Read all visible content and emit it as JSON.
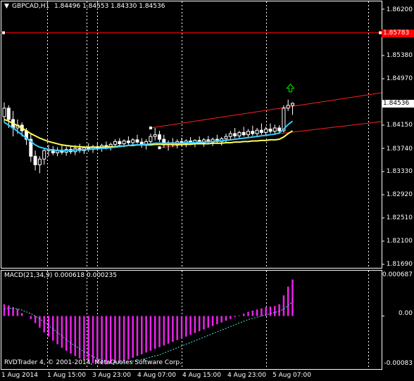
{
  "header": {
    "symbol": "GBPCAD,H1",
    "ohlc": "1.84496 1.84553 1.84330 1.84536"
  },
  "price_axis": {
    "labels": [
      "1.86200",
      "1.85783",
      "1.85380",
      "1.84970",
      "1.84536",
      "1.84150",
      "1.83740",
      "1.83330",
      "1.82920",
      "1.82510",
      "1.82100",
      "1.81690"
    ],
    "current_price": "1.84536",
    "alert_price": "1.85783"
  },
  "macd": {
    "title": "MACD(21,34,9) 0.000618 0.000235",
    "scale_labels": [
      "0.000687",
      "0.00",
      "-0.00083"
    ]
  },
  "footer": {
    "copyright": "RVDTrader 4, © 2001-2014, MetaQuotes Software Corp."
  },
  "time_axis": {
    "labels": [
      "1 Aug 2014",
      "1 Aug 15:00",
      "3 Aug 23:00",
      "4 Aug 07:00",
      "4 Aug 15:00",
      "4 Aug 23:00",
      "5 Aug 07:00"
    ]
  },
  "colors": {
    "background": "#000000",
    "bull_candle": "#000000",
    "candle_outline": "#ffffff",
    "ma_fast": "#33ccff",
    "ma_slow": "#ffff55",
    "channel": "#ff2020",
    "alert_line": "#ff0000",
    "macd_hist": "#ee22ee",
    "macd_signal": "#55dddd",
    "up_arrow": "#00cc00"
  },
  "chart_data": [
    {
      "type": "candlestick",
      "symbol": "GBPCAD",
      "timeframe": "H1",
      "ylim": [
        1.8169,
        1.862
      ],
      "x_labels": [
        "1 Aug 2014",
        "1 Aug 15:00",
        "3 Aug 23:00",
        "4 Aug 07:00",
        "4 Aug 15:00",
        "4 Aug 23:00",
        "5 Aug 07:00"
      ],
      "last_close": 1.84536,
      "horizontal_line": 1.85783,
      "ohlc": [
        [
          1.843,
          1.8455,
          1.842,
          1.8445
        ],
        [
          1.8445,
          1.845,
          1.841,
          1.8425
        ],
        [
          1.8425,
          1.844,
          1.8395,
          1.841
        ],
        [
          1.841,
          1.8425,
          1.84,
          1.8415
        ],
        [
          1.8415,
          1.842,
          1.8395,
          1.8405
        ],
        [
          1.8405,
          1.841,
          1.838,
          1.839
        ],
        [
          1.839,
          1.84,
          1.835,
          1.836
        ],
        [
          1.836,
          1.837,
          1.8335,
          1.8345
        ],
        [
          1.8345,
          1.836,
          1.833,
          1.8355
        ],
        [
          1.8355,
          1.8375,
          1.8345,
          1.837
        ],
        [
          1.837,
          1.838,
          1.836,
          1.8372
        ],
        [
          1.8372,
          1.8378,
          1.8362,
          1.8366
        ],
        [
          1.8366,
          1.8376,
          1.836,
          1.8371
        ],
        [
          1.8371,
          1.8379,
          1.8363,
          1.8367
        ],
        [
          1.8367,
          1.8377,
          1.8361,
          1.8372
        ],
        [
          1.8372,
          1.8378,
          1.8364,
          1.8368
        ],
        [
          1.8368,
          1.838,
          1.8362,
          1.8374
        ],
        [
          1.8374,
          1.8382,
          1.8366,
          1.837
        ],
        [
          1.837,
          1.8378,
          1.8364,
          1.8375
        ],
        [
          1.8375,
          1.8383,
          1.8368,
          1.8372
        ],
        [
          1.8372,
          1.838,
          1.8366,
          1.8377
        ],
        [
          1.8377,
          1.8384,
          1.837,
          1.8374
        ],
        [
          1.8374,
          1.8382,
          1.8368,
          1.8379
        ],
        [
          1.8379,
          1.8386,
          1.8372,
          1.8376
        ],
        [
          1.8376,
          1.8384,
          1.837,
          1.8381
        ],
        [
          1.8381,
          1.839,
          1.8375,
          1.8386
        ],
        [
          1.8386,
          1.8392,
          1.8378,
          1.8382
        ],
        [
          1.8382,
          1.839,
          1.8376,
          1.8387
        ],
        [
          1.8387,
          1.8395,
          1.838,
          1.8384
        ],
        [
          1.8384,
          1.8392,
          1.8378,
          1.8389
        ],
        [
          1.8389,
          1.8398,
          1.8382,
          1.8385
        ],
        [
          1.8385,
          1.8392,
          1.8375,
          1.838
        ],
        [
          1.838,
          1.839,
          1.8372,
          1.8386
        ],
        [
          1.8386,
          1.84,
          1.838,
          1.8395
        ],
        [
          1.8395,
          1.841,
          1.8388,
          1.8398
        ],
        [
          1.8398,
          1.8405,
          1.8385,
          1.839
        ],
        [
          1.839,
          1.8398,
          1.8375,
          1.838
        ],
        [
          1.838,
          1.8388,
          1.837,
          1.8384
        ],
        [
          1.8384,
          1.8392,
          1.8376,
          1.838
        ],
        [
          1.838,
          1.839,
          1.8374,
          1.8386
        ],
        [
          1.8386,
          1.8393,
          1.8378,
          1.8382
        ],
        [
          1.8382,
          1.839,
          1.8376,
          1.8387
        ],
        [
          1.8387,
          1.8394,
          1.838,
          1.8383
        ],
        [
          1.8383,
          1.839,
          1.8376,
          1.8388
        ],
        [
          1.8388,
          1.8395,
          1.8381,
          1.8384
        ],
        [
          1.8384,
          1.8392,
          1.8377,
          1.8389
        ],
        [
          1.8389,
          1.8396,
          1.8382,
          1.8385
        ],
        [
          1.8385,
          1.8393,
          1.8378,
          1.839
        ],
        [
          1.839,
          1.8398,
          1.8383,
          1.8386
        ],
        [
          1.8386,
          1.8394,
          1.8379,
          1.8391
        ],
        [
          1.8391,
          1.84,
          1.8384,
          1.8395
        ],
        [
          1.8395,
          1.8405,
          1.8388,
          1.84
        ],
        [
          1.84,
          1.841,
          1.8392,
          1.8396
        ],
        [
          1.8396,
          1.8405,
          1.839,
          1.8402
        ],
        [
          1.8402,
          1.8412,
          1.8395,
          1.8398
        ],
        [
          1.8398,
          1.8408,
          1.8392,
          1.8404
        ],
        [
          1.8404,
          1.8414,
          1.8396,
          1.84
        ],
        [
          1.84,
          1.841,
          1.8394,
          1.8406
        ],
        [
          1.8406,
          1.8418,
          1.8398,
          1.8402
        ],
        [
          1.8402,
          1.8412,
          1.8396,
          1.8408
        ],
        [
          1.8408,
          1.8418,
          1.84,
          1.8404
        ],
        [
          1.8404,
          1.8416,
          1.8398,
          1.841
        ],
        [
          1.841,
          1.8415,
          1.84,
          1.8405
        ],
        [
          1.8405,
          1.845,
          1.8402,
          1.8445
        ],
        [
          1.8445,
          1.846,
          1.844,
          1.845
        ],
        [
          1.845,
          1.8455,
          1.8433,
          1.84536
        ]
      ],
      "ma_fast": [
        1.842,
        1.8415,
        1.841,
        1.8404,
        1.8398,
        1.8392,
        1.8386,
        1.838,
        1.8376,
        1.8374,
        1.8372,
        1.8371,
        1.837,
        1.837,
        1.837,
        1.837,
        1.8371,
        1.8371,
        1.8372,
        1.8372,
        1.8373,
        1.8373,
        1.8374,
        1.8374,
        1.8375,
        1.8376,
        1.8377,
        1.8378,
        1.8379,
        1.838,
        1.838,
        1.838,
        1.8381,
        1.8382,
        1.8383,
        1.8383,
        1.8383,
        1.8383,
        1.8383,
        1.8383,
        1.8383,
        1.8384,
        1.8384,
        1.8384,
        1.8385,
        1.8385,
        1.8386,
        1.8386,
        1.8387,
        1.8387,
        1.8388,
        1.8389,
        1.839,
        1.8391,
        1.8392,
        1.8393,
        1.8394,
        1.8395,
        1.8396,
        1.8397,
        1.8398,
        1.8399,
        1.8401,
        1.8408,
        1.8416,
        1.8422
      ],
      "ma_slow": [
        1.8425,
        1.8422,
        1.8418,
        1.8414,
        1.841,
        1.8405,
        1.84,
        1.8396,
        1.8392,
        1.8389,
        1.8386,
        1.8384,
        1.8382,
        1.838,
        1.8379,
        1.8378,
        1.8377,
        1.8377,
        1.8376,
        1.8376,
        1.8376,
        1.8376,
        1.8376,
        1.8376,
        1.8377,
        1.8377,
        1.8378,
        1.8378,
        1.8379,
        1.8379,
        1.838,
        1.838,
        1.838,
        1.838,
        1.8381,
        1.8381,
        1.8381,
        1.8381,
        1.8381,
        1.8381,
        1.8381,
        1.8381,
        1.8381,
        1.8382,
        1.8382,
        1.8382,
        1.8382,
        1.8383,
        1.8383,
        1.8383,
        1.8384,
        1.8384,
        1.8385,
        1.8385,
        1.8386,
        1.8386,
        1.8387,
        1.8387,
        1.8388,
        1.8388,
        1.8389,
        1.8389,
        1.839,
        1.8394,
        1.84,
        1.8405
      ],
      "channel_upper": {
        "from": [
          33,
          1.841
        ],
        "to": [
          100,
          1.849
        ]
      },
      "channel_lower": {
        "from": [
          35,
          1.8375
        ],
        "to": [
          100,
          1.8435
        ]
      }
    },
    {
      "type": "bar",
      "title": "MACD(21,34,9) 0.000618 0.000235",
      "ylim": [
        -0.00083,
        0.000687
      ],
      "histogram": [
        0.0002,
        0.00018,
        0.00015,
        0.00012,
        5e-05,
        0.0,
        -5e-05,
        -0.00012,
        -0.0002,
        -0.00028,
        -0.00035,
        -0.00042,
        -0.00048,
        -0.00054,
        -0.00059,
        -0.00064,
        -0.00068,
        -0.00072,
        -0.00075,
        -0.00078,
        -0.0008,
        -0.00081,
        -0.00082,
        -0.00082,
        -0.00081,
        -0.0008,
        -0.00078,
        -0.00076,
        -0.00074,
        -0.00071,
        -0.00068,
        -0.00065,
        -0.00062,
        -0.00059,
        -0.00056,
        -0.00053,
        -0.0005,
        -0.00047,
        -0.00044,
        -0.00041,
        -0.00038,
        -0.00035,
        -0.00032,
        -0.00029,
        -0.00026,
        -0.00023,
        -0.0002,
        -0.00017,
        -0.00014,
        -0.00011,
        -8e-05,
        -5e-05,
        -2e-05,
        1e-05,
        4e-05,
        7e-05,
        9e-05,
        0.00011,
        0.00013,
        0.00015,
        0.00016,
        0.00017,
        0.0002,
        0.00035,
        0.0005,
        0.00062
      ],
      "signal": [
        0.00012,
        0.00013,
        0.00013,
        0.00012,
        0.0001,
        7e-05,
        4e-05,
        0.0,
        -5e-05,
        -0.0001,
        -0.00016,
        -0.00022,
        -0.00028,
        -0.00034,
        -0.0004,
        -0.00046,
        -0.00051,
        -0.00056,
        -0.00061,
        -0.00065,
        -0.00069,
        -0.00072,
        -0.00075,
        -0.00077,
        -0.00078,
        -0.00079,
        -0.00079,
        -0.00079,
        -0.00078,
        -0.00077,
        -0.00076,
        -0.00074,
        -0.00072,
        -0.0007,
        -0.00068,
        -0.00066,
        -0.00063,
        -0.0006,
        -0.00057,
        -0.00054,
        -0.00051,
        -0.00048,
        -0.00045,
        -0.00042,
        -0.00039,
        -0.00036,
        -0.00033,
        -0.0003,
        -0.00027,
        -0.00024,
        -0.00021,
        -0.00018,
        -0.00015,
        -0.00012,
        -9e-05,
        -6e-05,
        -4e-05,
        -2e-05,
        0.0,
        2e-05,
        4e-05,
        6e-05,
        8e-05,
        0.00012,
        0.00018,
        0.00024
      ]
    }
  ]
}
